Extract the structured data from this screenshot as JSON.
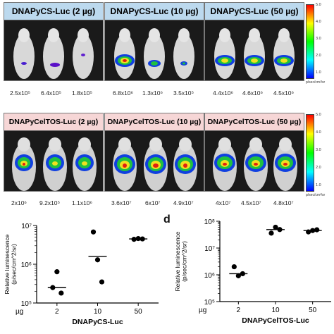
{
  "top_row": [
    {
      "label": "DNAPyCS-Luc (2 µg)",
      "values": [
        "2.5x10⁵",
        "6.4x10⁵",
        "1.8x10⁵"
      ]
    },
    {
      "label": "DNAPyCS-Luc (10 µg)",
      "values": [
        "6.8x10⁶",
        "1.3x10⁶",
        "3.5x10⁵"
      ]
    },
    {
      "label": "DNAPyCS-Luc (50 µg)",
      "values": [
        "4.4x10⁶",
        "4.6x10⁶",
        "4.5x10⁶"
      ]
    }
  ],
  "bottom_row": [
    {
      "label": "DNAPyCelTOS-Luc (2 µg)",
      "values": [
        "2x10⁶",
        "9.2x10⁵",
        "1.1x10⁶"
      ]
    },
    {
      "label": "DNAPyCelTOS-Luc (10 µg)",
      "values": [
        "3.6x10⁷",
        "6x10⁷",
        "4.9x10⁷"
      ]
    },
    {
      "label": "DNAPyCelTOS-Luc (50 µg)",
      "values": [
        "4x10⁷",
        "4.5x10⁷",
        "4.8x10⁷"
      ]
    }
  ],
  "color_scale_top": {
    "ticks": [
      "5.0",
      "4.0",
      "3.0",
      "2.0",
      "1.0"
    ],
    "unit": "p/sec/cm²/sr"
  },
  "color_scale_bottom": {
    "ticks": [
      "5.0",
      "4.0",
      "3.0",
      "2.0",
      "1.0"
    ],
    "unit": "p/sec/cm²/sr"
  },
  "panel_d_letter": "d",
  "chart_data": [
    {
      "type": "scatter",
      "ylabel": "Relative luminescence (p/sec/cm^2/sr)",
      "xlabel": "DNAPyCS-Luc",
      "x_prefix": "µg",
      "categories": [
        "2",
        "10",
        "50"
      ],
      "y_scale": "log",
      "ylim": [
        100000,
        10000000
      ],
      "yticks": [
        "10⁵",
        "10⁶",
        "10⁷"
      ],
      "points": [
        [
          2,
          250000
        ],
        [
          2,
          640000
        ],
        [
          2,
          180000
        ],
        [
          10,
          6800000
        ],
        [
          10,
          1300000
        ],
        [
          10,
          350000
        ],
        [
          50,
          4400000
        ],
        [
          50,
          4600000
        ],
        [
          50,
          4500000
        ]
      ],
      "means": [
        [
          2,
          250000
        ],
        [
          10,
          1600000
        ],
        [
          50,
          4500000
        ]
      ]
    },
    {
      "type": "scatter",
      "ylabel": "Relative luminescence (p/sec/cm^2/sr)",
      "xlabel": "DNAPyCelTOS-Luc",
      "x_prefix": "µg",
      "categories": [
        "2",
        "10",
        "50"
      ],
      "y_scale": "log",
      "ylim": [
        100000,
        100000000
      ],
      "yticks": [
        "10⁵",
        "10⁶",
        "10⁷",
        "10⁸"
      ],
      "points": [
        [
          2,
          2000000
        ],
        [
          2,
          920000
        ],
        [
          2,
          1100000
        ],
        [
          10,
          36000000
        ],
        [
          10,
          60000000
        ],
        [
          10,
          49000000
        ],
        [
          50,
          40000000
        ],
        [
          50,
          45000000
        ],
        [
          50,
          48000000
        ]
      ],
      "means": [
        [
          2,
          1100000
        ],
        [
          10,
          49000000
        ],
        [
          50,
          45000000
        ]
      ]
    }
  ]
}
